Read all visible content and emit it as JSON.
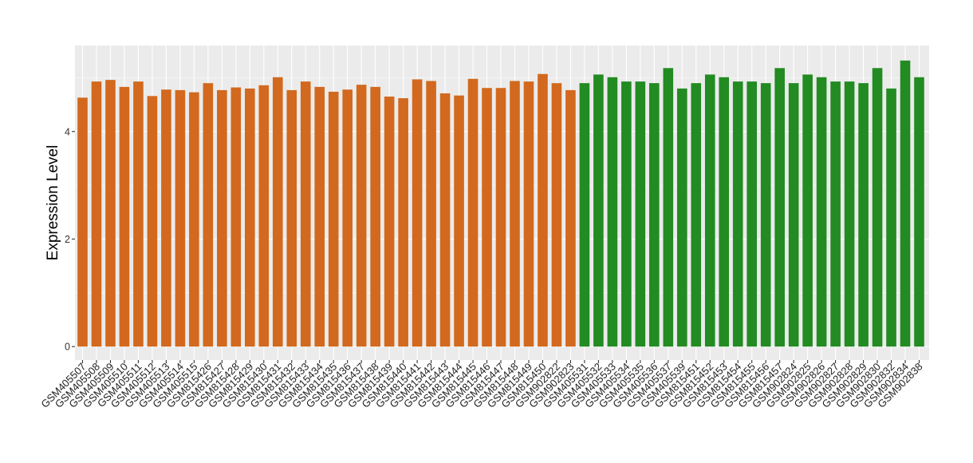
{
  "chart_data": {
    "type": "bar",
    "title": "",
    "xlabel": "",
    "ylabel": "Expression Level",
    "ylim": [
      -0.25,
      5.6
    ],
    "yticks": [
      0,
      2,
      4
    ],
    "grid": true,
    "legend": "none",
    "colors": {
      "group1": "#D2691E",
      "group2": "#228B22",
      "panel": "#EBEBEB",
      "gridline": "#FFFFFF"
    },
    "categories": [
      "GSM405507",
      "GSM405508",
      "GSM405509",
      "GSM405510",
      "GSM405511",
      "GSM405512",
      "GSM405513",
      "GSM405514",
      "GSM405515",
      "GSM815426",
      "GSM815427",
      "GSM815428",
      "GSM815429",
      "GSM815430",
      "GSM815431",
      "GSM815432",
      "GSM815433",
      "GSM815434",
      "GSM815435",
      "GSM815436",
      "GSM815437",
      "GSM815438",
      "GSM815439",
      "GSM815440",
      "GSM815441",
      "GSM815442",
      "GSM815443",
      "GSM815444",
      "GSM815445",
      "GSM815446",
      "GSM815447",
      "GSM815448",
      "GSM815449",
      "GSM815450",
      "GSM902822",
      "GSM902823",
      "GSM405531",
      "GSM405532",
      "GSM405533",
      "GSM405534",
      "GSM405535",
      "GSM405536",
      "GSM405537",
      "GSM405539",
      "GSM815451",
      "GSM815452",
      "GSM815453",
      "GSM815454",
      "GSM815455",
      "GSM815456",
      "GSM815457",
      "GSM902824",
      "GSM902825",
      "GSM902826",
      "GSM902827",
      "GSM902828",
      "GSM902829",
      "GSM902830",
      "GSM902832",
      "GSM902834",
      "GSM902838"
    ],
    "values": [
      4.63,
      4.93,
      4.96,
      4.83,
      4.93,
      4.66,
      4.78,
      4.77,
      4.73,
      4.9,
      4.77,
      4.82,
      4.8,
      4.86,
      5.01,
      4.77,
      4.93,
      4.83,
      4.74,
      4.78,
      4.87,
      4.83,
      4.65,
      4.62,
      4.97,
      4.94,
      4.71,
      4.67,
      4.98,
      4.81,
      4.81,
      4.94,
      4.93,
      5.07,
      4.9,
      4.77,
      4.9,
      5.06,
      5.01,
      4.93,
      4.93,
      4.9,
      5.18,
      4.8,
      4.9,
      5.06,
      5.01,
      4.93,
      4.93,
      4.9,
      5.18,
      4.9,
      5.06,
      5.01,
      4.93,
      4.93,
      4.9,
      5.18,
      4.8,
      5.32,
      5.01
    ],
    "group_split_index": 36
  }
}
